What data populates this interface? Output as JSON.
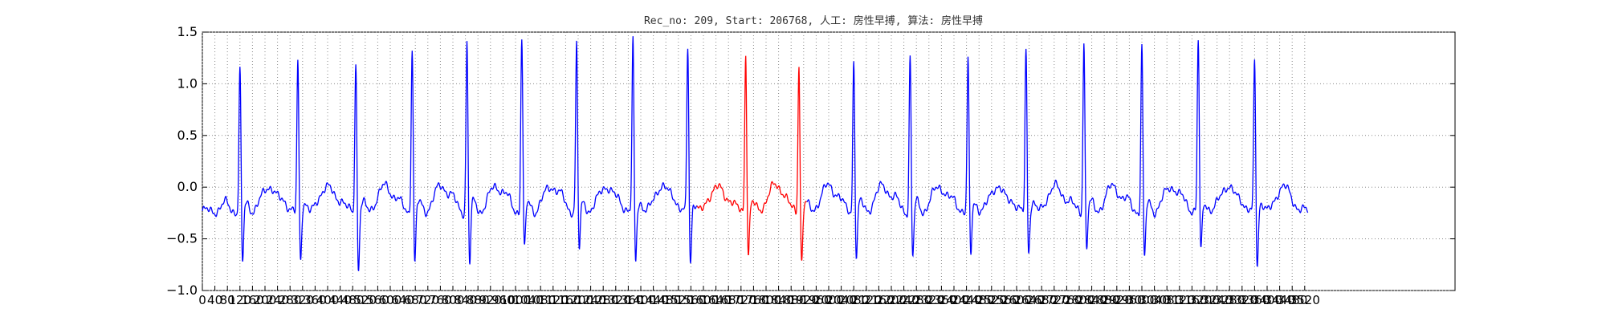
{
  "chart_data": {
    "type": "line",
    "title": "Rec_no: 209, Start: 206768, 人工: 房性早搏, 算法: 房性早搏",
    "xlabel": "",
    "ylabel": "",
    "xlim": [
      0,
      4000
    ],
    "ylim": [
      -1.0,
      1.5
    ],
    "yticks": [
      -1.0,
      -0.5,
      0.0,
      0.5,
      1.0,
      1.5
    ],
    "ytick_labels": [
      "−1.0",
      "−0.5",
      "0.0",
      "0.5",
      "1.0",
      "1.5"
    ],
    "xticks": [
      0,
      40,
      80,
      120,
      160,
      200,
      240,
      280,
      320,
      360,
      400,
      440,
      480,
      520,
      560,
      600,
      640,
      680,
      720,
      760,
      800,
      840,
      880,
      920,
      960,
      1000,
      1040,
      1080,
      1120,
      1160,
      1200,
      1240,
      1280,
      1320,
      1360,
      1400,
      1440,
      1480,
      1520,
      1560,
      1600,
      1640,
      1680,
      1720,
      1760,
      1800,
      1840,
      1880,
      1920,
      1960,
      2000,
      2040,
      2080,
      2120,
      2160,
      2200,
      2240,
      2280,
      2320,
      2360,
      2400,
      2440,
      2480,
      2520,
      2560,
      2600,
      2640,
      2680,
      2720,
      2760,
      2800,
      2840,
      2880,
      2920,
      2960,
      3000,
      3040,
      3080,
      3120,
      3160,
      3200,
      3240,
      3280,
      3320,
      3360,
      3400,
      3440,
      3480,
      3520
    ],
    "grid": true,
    "ecg": {
      "n_samples": 3530,
      "baseline": -0.23,
      "r_peaks": [
        {
          "x": 120,
          "r": 1.2,
          "s": -0.85
        },
        {
          "x": 305,
          "r": 1.28,
          "s": -0.83
        },
        {
          "x": 490,
          "r": 1.28,
          "s": -0.9
        },
        {
          "x": 670,
          "r": 1.43,
          "s": -0.85
        },
        {
          "x": 845,
          "r": 1.5,
          "s": -0.87
        },
        {
          "x": 1020,
          "r": 1.5,
          "s": -0.74
        },
        {
          "x": 1195,
          "r": 1.44,
          "s": -0.72
        },
        {
          "x": 1375,
          "r": 1.48,
          "s": -0.84
        },
        {
          "x": 1550,
          "r": 1.43,
          "s": -0.85
        },
        {
          "x": 1735,
          "r": 1.37,
          "s": -0.76
        },
        {
          "x": 1905,
          "r": 1.28,
          "s": -0.84
        },
        {
          "x": 2080,
          "r": 1.3,
          "s": -0.78
        },
        {
          "x": 2260,
          "r": 1.32,
          "s": -0.8
        },
        {
          "x": 2445,
          "r": 1.3,
          "s": -0.78
        },
        {
          "x": 2630,
          "r": 1.38,
          "s": -0.74
        },
        {
          "x": 2815,
          "r": 1.49,
          "s": -0.71
        },
        {
          "x": 3000,
          "r": 1.43,
          "s": -0.83
        },
        {
          "x": 3180,
          "r": 1.47,
          "s": -0.75
        },
        {
          "x": 3360,
          "r": 1.3,
          "s": -0.88
        }
      ],
      "highlight": {
        "x_start": 1580,
        "x_end": 1930,
        "color": "#ff0000"
      },
      "line_color": "#0000ff"
    }
  }
}
